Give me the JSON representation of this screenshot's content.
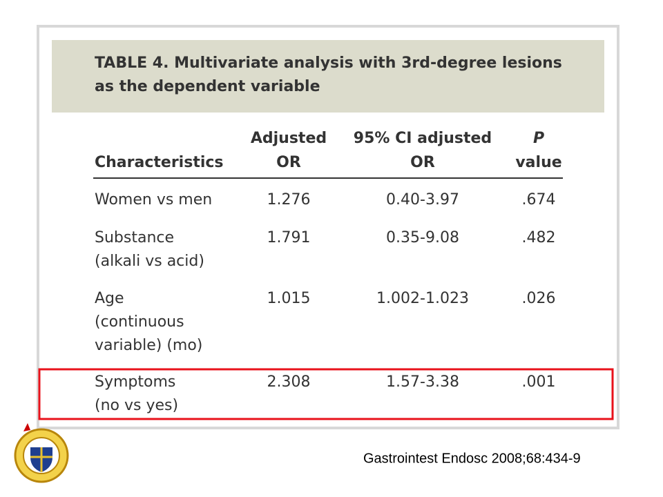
{
  "table": {
    "title": [
      "TABLE 4. Multivariate analysis with 3rd-degree lesions",
      "as the dependent variable"
    ],
    "headers": [
      [
        "Characteristics"
      ],
      [
        "Adjusted",
        "OR"
      ],
      [
        "95% CI adjusted",
        "OR"
      ],
      [
        "P",
        "value"
      ]
    ],
    "rows": [
      [
        [
          "Women vs men"
        ],
        "1.276",
        "0.40-3.97",
        ".674"
      ],
      [
        [
          "Substance",
          "(alkali vs acid)"
        ],
        "1.791",
        "0.35-9.08",
        ".482"
      ],
      [
        [
          "Age",
          "(continuous",
          "variable) (mo)"
        ],
        "1.015",
        "1.002-1.023",
        ".026"
      ],
      [
        [
          "Symptoms",
          "(no vs yes)"
        ],
        "2.308",
        "1.57-3.38",
        ".001"
      ]
    ]
  },
  "citation": "Gastrointest Endosc 2008;68:434-9"
}
